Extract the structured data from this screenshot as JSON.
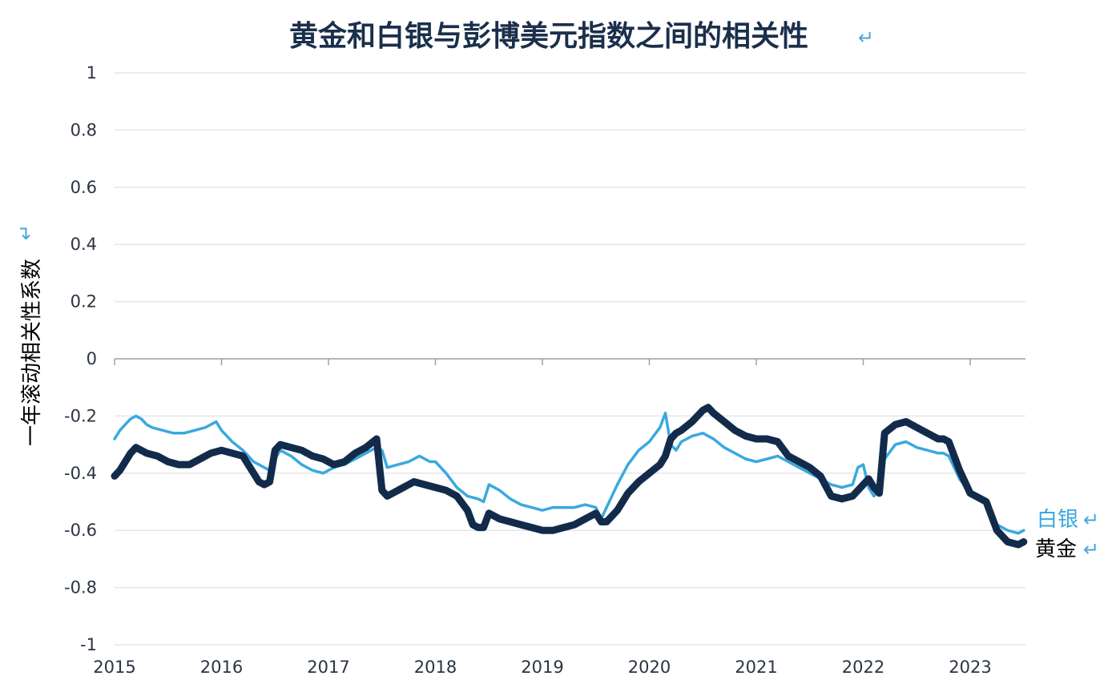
{
  "chart_data": {
    "type": "line",
    "title": "黄金和白银与彭博美元指数之间的相关性",
    "ylabel": "一年滚动相关性系数",
    "xlabel": "",
    "ylim": [
      -1,
      1
    ],
    "xlim": [
      2015,
      2023.55
    ],
    "yticks": [
      "1",
      "0.8",
      "0.6",
      "0.4",
      "0.2",
      "0",
      "-0.2",
      "-0.4",
      "-0.6",
      "-0.8",
      "-1"
    ],
    "ytick_values": [
      1,
      0.8,
      0.6,
      0.4,
      0.2,
      0,
      -0.2,
      -0.4,
      -0.6,
      -0.8,
      -1
    ],
    "xticks": [
      "2015",
      "2016",
      "2017",
      "2018",
      "2019",
      "2020",
      "2021",
      "2022",
      "2023"
    ],
    "xtick_values": [
      2015,
      2016,
      2017,
      2018,
      2019,
      2020,
      2021,
      2022,
      2023
    ],
    "grid": true,
    "series": [
      {
        "name": "白银",
        "color": "#3aa9de",
        "x": [
          2015.0,
          2015.05,
          2015.1,
          2015.15,
          2015.2,
          2015.25,
          2015.3,
          2015.35,
          2015.45,
          2015.55,
          2015.65,
          2015.75,
          2015.85,
          2015.95,
          2016.0,
          2016.05,
          2016.1,
          2016.2,
          2016.3,
          2016.4,
          2016.45,
          2016.5,
          2016.55,
          2016.65,
          2016.75,
          2016.85,
          2016.95,
          2017.05,
          2017.15,
          2017.25,
          2017.35,
          2017.45,
          2017.5,
          2017.55,
          2017.65,
          2017.75,
          2017.85,
          2017.95,
          2018.0,
          2018.1,
          2018.2,
          2018.3,
          2018.4,
          2018.45,
          2018.5,
          2018.6,
          2018.7,
          2018.8,
          2018.9,
          2019.0,
          2019.1,
          2019.2,
          2019.3,
          2019.4,
          2019.5,
          2019.55,
          2019.6,
          2019.7,
          2019.8,
          2019.9,
          2020.0,
          2020.1,
          2020.15,
          2020.2,
          2020.25,
          2020.3,
          2020.4,
          2020.5,
          2020.6,
          2020.7,
          2020.8,
          2020.9,
          2021.0,
          2021.1,
          2021.2,
          2021.3,
          2021.4,
          2021.5,
          2021.6,
          2021.7,
          2021.8,
          2021.9,
          2021.95,
          2022.0,
          2022.05,
          2022.1,
          2022.15,
          2022.2,
          2022.3,
          2022.4,
          2022.5,
          2022.6,
          2022.7,
          2022.75,
          2022.8,
          2022.9,
          2023.0,
          2023.1,
          2023.15,
          2023.25,
          2023.35,
          2023.45,
          2023.5
        ],
        "y": [
          -0.28,
          -0.25,
          -0.23,
          -0.21,
          -0.2,
          -0.21,
          -0.23,
          -0.24,
          -0.25,
          -0.26,
          -0.26,
          -0.25,
          -0.24,
          -0.22,
          -0.25,
          -0.27,
          -0.29,
          -0.32,
          -0.36,
          -0.38,
          -0.39,
          -0.35,
          -0.32,
          -0.34,
          -0.37,
          -0.39,
          -0.4,
          -0.38,
          -0.37,
          -0.35,
          -0.33,
          -0.31,
          -0.32,
          -0.38,
          -0.37,
          -0.36,
          -0.34,
          -0.36,
          -0.36,
          -0.4,
          -0.45,
          -0.48,
          -0.49,
          -0.5,
          -0.44,
          -0.46,
          -0.49,
          -0.51,
          -0.52,
          -0.53,
          -0.52,
          -0.52,
          -0.52,
          -0.51,
          -0.52,
          -0.56,
          -0.52,
          -0.44,
          -0.37,
          -0.32,
          -0.29,
          -0.24,
          -0.19,
          -0.3,
          -0.32,
          -0.29,
          -0.27,
          -0.26,
          -0.28,
          -0.31,
          -0.33,
          -0.35,
          -0.36,
          -0.35,
          -0.34,
          -0.36,
          -0.38,
          -0.4,
          -0.42,
          -0.44,
          -0.45,
          -0.44,
          -0.38,
          -0.37,
          -0.45,
          -0.48,
          -0.45,
          -0.35,
          -0.3,
          -0.29,
          -0.31,
          -0.32,
          -0.33,
          -0.33,
          -0.34,
          -0.42,
          -0.47,
          -0.49,
          -0.5,
          -0.58,
          -0.6,
          -0.61,
          -0.6
        ]
      },
      {
        "name": "黄金",
        "color": "#132b4b",
        "x": [
          2015.0,
          2015.05,
          2015.1,
          2015.15,
          2015.2,
          2015.25,
          2015.3,
          2015.4,
          2015.5,
          2015.6,
          2015.7,
          2015.8,
          2015.9,
          2016.0,
          2016.1,
          2016.2,
          2016.3,
          2016.35,
          2016.4,
          2016.45,
          2016.5,
          2016.55,
          2016.65,
          2016.75,
          2016.85,
          2016.95,
          2017.05,
          2017.15,
          2017.25,
          2017.35,
          2017.45,
          2017.5,
          2017.55,
          2017.6,
          2017.7,
          2017.8,
          2017.9,
          2018.0,
          2018.1,
          2018.2,
          2018.3,
          2018.35,
          2018.4,
          2018.45,
          2018.5,
          2018.6,
          2018.7,
          2018.8,
          2018.9,
          2019.0,
          2019.1,
          2019.2,
          2019.3,
          2019.4,
          2019.5,
          2019.55,
          2019.6,
          2019.7,
          2019.8,
          2019.9,
          2020.0,
          2020.1,
          2020.15,
          2020.2,
          2020.25,
          2020.3,
          2020.4,
          2020.5,
          2020.55,
          2020.6,
          2020.7,
          2020.8,
          2020.9,
          2021.0,
          2021.1,
          2021.2,
          2021.3,
          2021.4,
          2021.5,
          2021.6,
          2021.7,
          2021.8,
          2021.9,
          2022.0,
          2022.05,
          2022.1,
          2022.15,
          2022.2,
          2022.3,
          2022.4,
          2022.5,
          2022.6,
          2022.7,
          2022.75,
          2022.8,
          2022.9,
          2023.0,
          2023.1,
          2023.15,
          2023.25,
          2023.35,
          2023.45,
          2023.5
        ],
        "y": [
          -0.41,
          -0.39,
          -0.36,
          -0.33,
          -0.31,
          -0.32,
          -0.33,
          -0.34,
          -0.36,
          -0.37,
          -0.37,
          -0.35,
          -0.33,
          -0.32,
          -0.33,
          -0.34,
          -0.4,
          -0.43,
          -0.44,
          -0.43,
          -0.32,
          -0.3,
          -0.31,
          -0.32,
          -0.34,
          -0.35,
          -0.37,
          -0.36,
          -0.33,
          -0.31,
          -0.28,
          -0.46,
          -0.48,
          -0.47,
          -0.45,
          -0.43,
          -0.44,
          -0.45,
          -0.46,
          -0.48,
          -0.53,
          -0.58,
          -0.59,
          -0.59,
          -0.54,
          -0.56,
          -0.57,
          -0.58,
          -0.59,
          -0.6,
          -0.6,
          -0.59,
          -0.58,
          -0.56,
          -0.54,
          -0.57,
          -0.57,
          -0.53,
          -0.47,
          -0.43,
          -0.4,
          -0.37,
          -0.34,
          -0.28,
          -0.26,
          -0.25,
          -0.22,
          -0.18,
          -0.17,
          -0.19,
          -0.22,
          -0.25,
          -0.27,
          -0.28,
          -0.28,
          -0.29,
          -0.34,
          -0.36,
          -0.38,
          -0.41,
          -0.48,
          -0.49,
          -0.48,
          -0.44,
          -0.42,
          -0.45,
          -0.47,
          -0.26,
          -0.23,
          -0.22,
          -0.24,
          -0.26,
          -0.28,
          -0.28,
          -0.29,
          -0.39,
          -0.47,
          -0.49,
          -0.5,
          -0.6,
          -0.64,
          -0.65,
          -0.64
        ]
      }
    ],
    "series_labels": [
      "白银",
      "黄金"
    ]
  }
}
